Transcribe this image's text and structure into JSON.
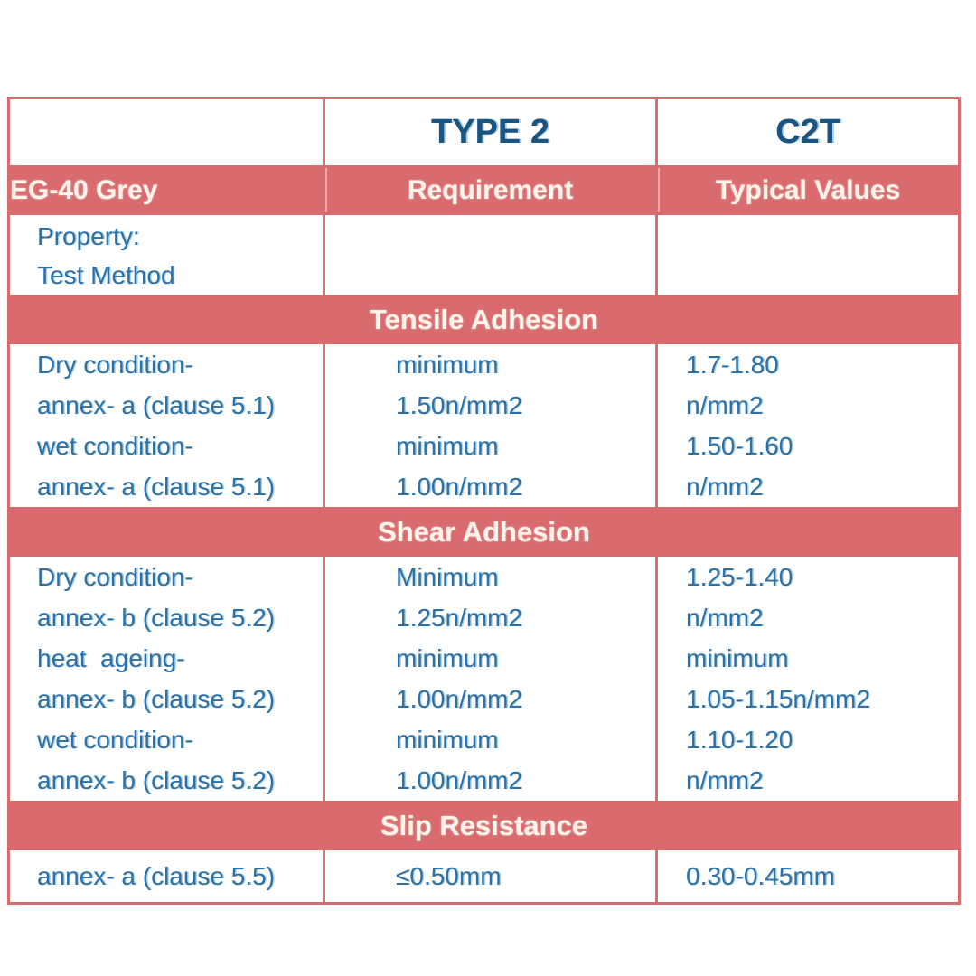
{
  "table": {
    "colors": {
      "band_pink": "#d96a6e",
      "border_pink": "#d96a6e",
      "body_text_blue": "#2f70a4",
      "header_text_blue": "#1a5480",
      "band_text_cream": "#fcf3ea",
      "background": "#ffffff"
    },
    "top_header": {
      "col1": "",
      "col2": "TYPE 2",
      "col3": "C2T"
    },
    "sub_header": {
      "col1": "EG-40 Grey",
      "col2": "Requirement",
      "col3": "Typical Values"
    },
    "property_label_lines": [
      "Property:",
      "Test Method"
    ],
    "sections": [
      {
        "title": "Tensile Adhesion",
        "property_lines": [
          "Dry condition-",
          "annex- a (clause 5.1)",
          "wet condition-",
          "annex- a (clause 5.1)"
        ],
        "requirement_lines": [
          "minimum",
          "1.50n/mm2",
          "minimum",
          "1.00n/mm2"
        ],
        "typical_lines": [
          "1.7-1.80",
          "n/mm2",
          "1.50-1.60",
          "n/mm2"
        ]
      },
      {
        "title": "Shear Adhesion",
        "property_lines": [
          "Dry condition-",
          "annex- b (clause 5.2)",
          "heat  ageing-",
          "annex- b (clause 5.2)",
          "wet condition-",
          "annex- b (clause 5.2)"
        ],
        "requirement_lines": [
          "Minimum",
          "1.25n/mm2",
          "minimum",
          "1.00n/mm2",
          "minimum",
          "1.00n/mm2"
        ],
        "typical_lines": [
          "1.25-1.40",
          "n/mm2",
          "minimum",
          "1.05-1.15n/mm2",
          "1.10-1.20",
          "n/mm2"
        ]
      },
      {
        "title": "Slip Resistance",
        "property_lines": [
          "annex- a (clause 5.5)"
        ],
        "requirement_lines": [
          "≤0.50mm"
        ],
        "typical_lines": [
          "0.30-0.45mm"
        ]
      }
    ]
  }
}
